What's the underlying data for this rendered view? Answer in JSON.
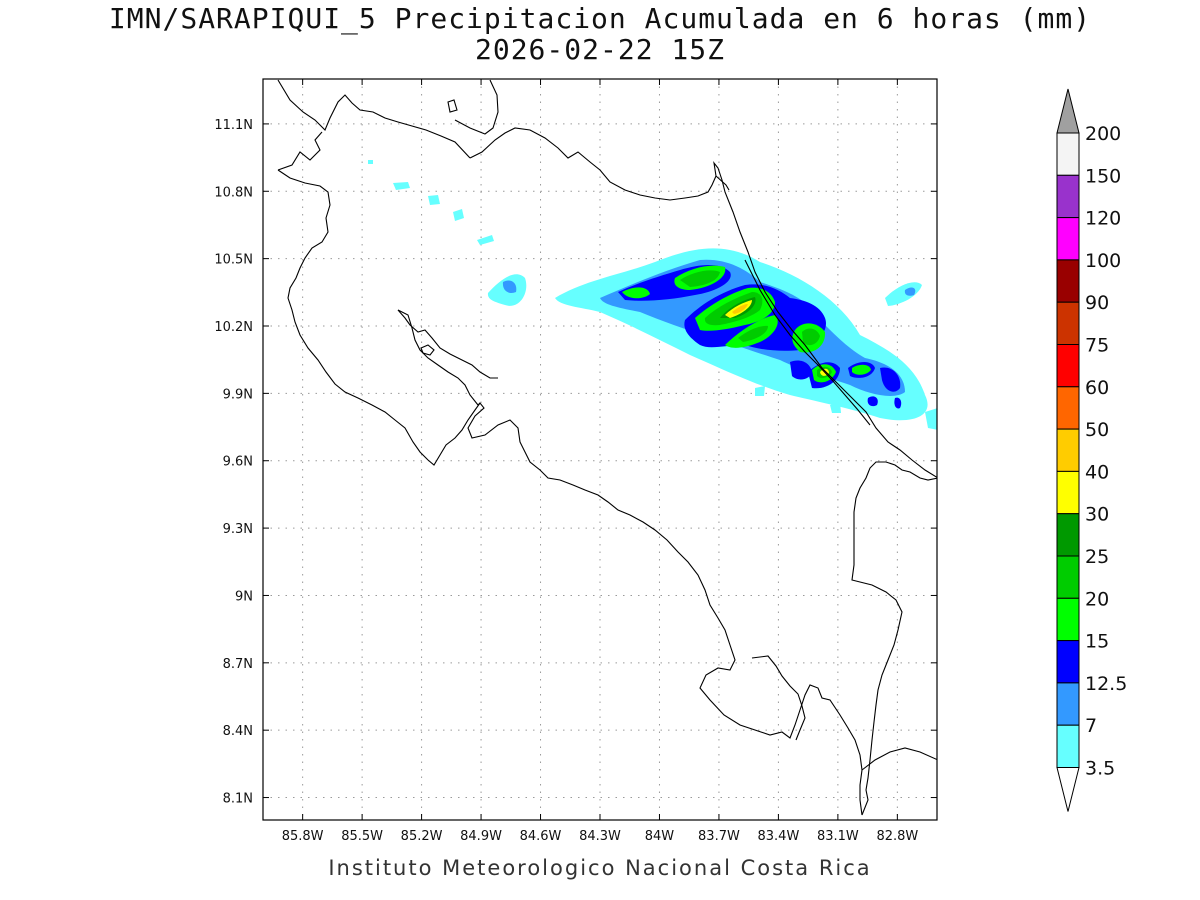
{
  "title_line1": "IMN/SARAPIQUI_5 Precipitacion Acumulada en 6 horas (mm)",
  "title_line2": "2026-02-22 15Z",
  "footer": "Instituto Meteorologico Nacional Costa Rica",
  "map": {
    "lon_range": [
      -86.0,
      -82.6
    ],
    "lat_range": [
      8.0,
      11.3
    ],
    "lon_ticks": [
      "85.8W",
      "85.5W",
      "85.2W",
      "84.9W",
      "84.6W",
      "84.3W",
      "84W",
      "83.7W",
      "83.4W",
      "83.1W",
      "82.8W"
    ],
    "lat_ticks": [
      "11.1N",
      "10.8N",
      "10.5N",
      "10.2N",
      "9.9N",
      "9.6N",
      "9.3N",
      "9N",
      "8.7N",
      "8.4N",
      "8.1N"
    ],
    "grid": "dotted"
  },
  "colorbar": {
    "levels": [
      "200",
      "150",
      "120",
      "100",
      "90",
      "75",
      "60",
      "50",
      "40",
      "30",
      "25",
      "20",
      "15",
      "12.5",
      "7",
      "3.5"
    ],
    "colors": [
      "#f4f4f4",
      "#9932cc",
      "#ff00ff",
      "#990000",
      "#cc3300",
      "#ff0000",
      "#ff6600",
      "#ffcc00",
      "#ffff00",
      "#009900",
      "#00cc00",
      "#00ff00",
      "#0000ff",
      "#3399ff",
      "#66ffff"
    ],
    "over_color": "#a0a0a0",
    "under_color": "#ffffff"
  }
}
